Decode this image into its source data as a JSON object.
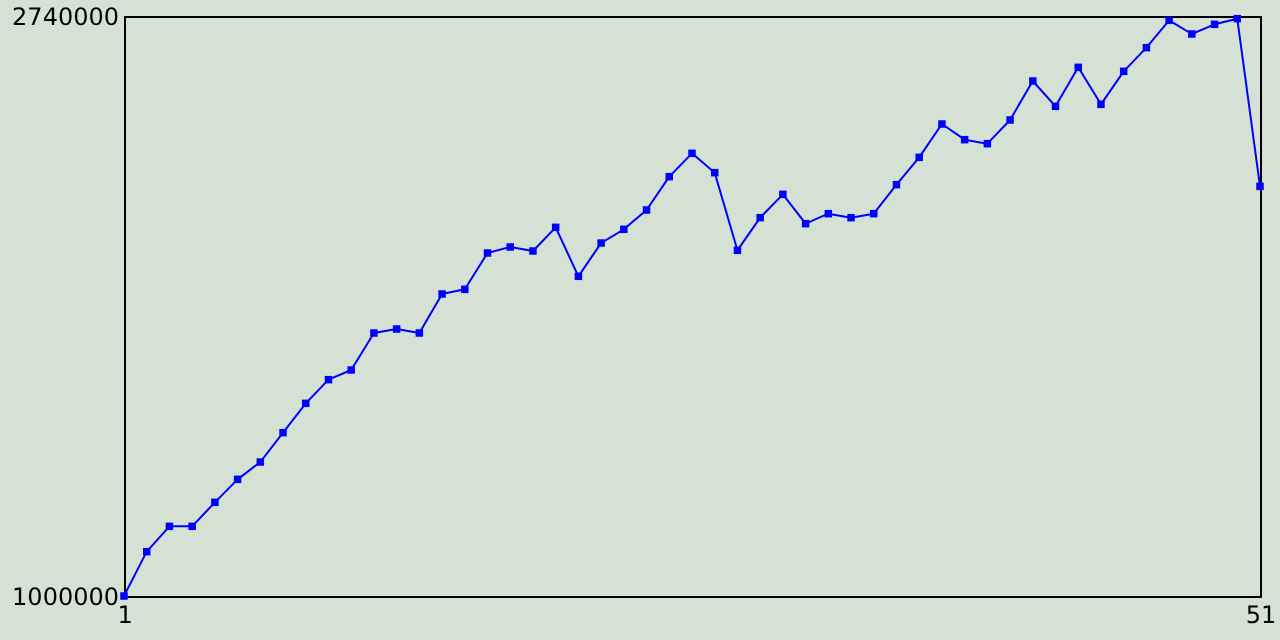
{
  "chart_data": {
    "type": "line",
    "x": [
      1,
      2,
      3,
      4,
      5,
      6,
      7,
      8,
      9,
      10,
      11,
      12,
      13,
      14,
      15,
      16,
      17,
      18,
      19,
      20,
      21,
      22,
      23,
      24,
      25,
      26,
      27,
      28,
      29,
      30,
      31,
      32,
      33,
      34,
      35,
      36,
      37,
      38,
      39,
      40,
      41,
      42,
      43,
      44,
      45,
      46,
      47,
      48,
      49,
      50,
      51
    ],
    "series": [
      {
        "color": "#0000ff",
        "values": [
          1000000,
          1133000,
          1209000,
          1209000,
          1281000,
          1350000,
          1402000,
          1490000,
          1578000,
          1649000,
          1678000,
          1789000,
          1801000,
          1789000,
          1906000,
          1920000,
          2029000,
          2047000,
          2035000,
          2106000,
          1959000,
          2059000,
          2100000,
          2158000,
          2258000,
          2328000,
          2270000,
          2037000,
          2135000,
          2205000,
          2117000,
          2147000,
          2135000,
          2147000,
          2234000,
          2316000,
          2416000,
          2369000,
          2357000,
          2428000,
          2545000,
          2469000,
          2586000,
          2475000,
          2574000,
          2645000,
          2727000,
          2686000,
          2715000,
          2732000,
          2229000
        ]
      }
    ],
    "xlim": [
      1,
      51
    ],
    "ylim": [
      1000000,
      2740000
    ],
    "xticks": [
      1,
      51
    ],
    "yticks": [
      1000000,
      2740000
    ],
    "grid": false,
    "marker": "square",
    "line_style": "solid"
  }
}
